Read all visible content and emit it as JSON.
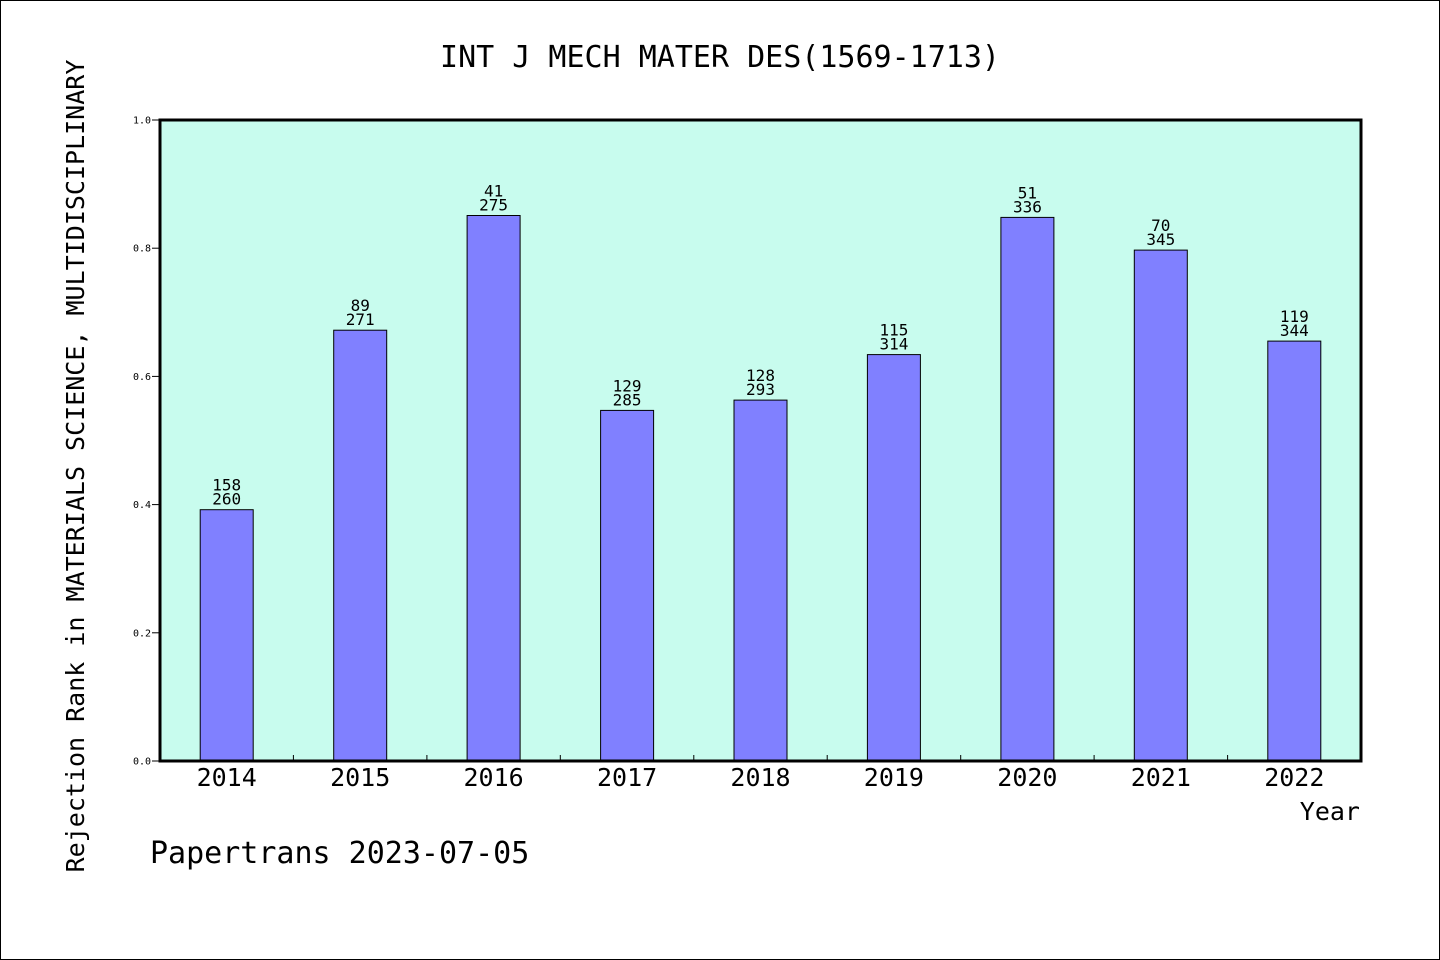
{
  "chart_data": {
    "type": "bar",
    "title": "INT J MECH MATER DES(1569-1713)",
    "xlabel": "Year",
    "ylabel": "Rejection Rank in MATERIALS SCIENCE, MULTIDISCIPLINARY",
    "credit": "Papertrans 2023-07-05",
    "ylim": [
      0,
      1.0
    ],
    "yticks": [
      "0.0",
      "0.2",
      "0.4",
      "0.6",
      "0.8",
      "1.0"
    ],
    "ytick_values": [
      0.0,
      0.2,
      0.4,
      0.6,
      0.8,
      1.0
    ],
    "categories": [
      "2014",
      "2015",
      "2016",
      "2017",
      "2018",
      "2019",
      "2020",
      "2021",
      "2022"
    ],
    "values": [
      0.392,
      0.672,
      0.851,
      0.547,
      0.563,
      0.634,
      0.848,
      0.797,
      0.655
    ],
    "rank_labels": [
      "158",
      "89",
      "41",
      "129",
      "128",
      "115",
      "51",
      "70",
      "119"
    ],
    "total_labels": [
      "260",
      "271",
      "275",
      "285",
      "293",
      "314",
      "336",
      "345",
      "344"
    ],
    "grid": false,
    "legend": "none",
    "colors": {
      "bar_fill": "#8080ff",
      "plot_background": "#c8fcee",
      "border": "#000000"
    }
  }
}
